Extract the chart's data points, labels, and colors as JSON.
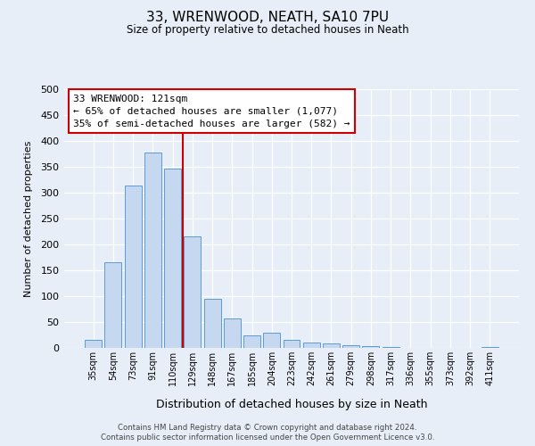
{
  "title": "33, WRENWOOD, NEATH, SA10 7PU",
  "subtitle": "Size of property relative to detached houses in Neath",
  "xlabel": "Distribution of detached houses by size in Neath",
  "ylabel": "Number of detached properties",
  "categories": [
    "35sqm",
    "54sqm",
    "73sqm",
    "91sqm",
    "110sqm",
    "129sqm",
    "148sqm",
    "167sqm",
    "185sqm",
    "204sqm",
    "223sqm",
    "242sqm",
    "261sqm",
    "279sqm",
    "298sqm",
    "317sqm",
    "336sqm",
    "355sqm",
    "373sqm",
    "392sqm",
    "411sqm"
  ],
  "values": [
    15,
    165,
    314,
    377,
    347,
    215,
    95,
    57,
    25,
    30,
    15,
    10,
    9,
    6,
    4,
    1,
    0,
    0,
    0,
    0,
    2
  ],
  "bar_color": "#c5d8f0",
  "bar_edge_color": "#5b9bd5",
  "background_color": "#e8eef7",
  "grid_color": "#ffffff",
  "vline_x_index": 5,
  "vline_color": "#cc0000",
  "annotation_title": "33 WRENWOOD: 121sqm",
  "annotation_line1": "← 65% of detached houses are smaller (1,077)",
  "annotation_line2": "35% of semi-detached houses are larger (582) →",
  "annotation_box_color": "#ffffff",
  "annotation_box_edge": "#cc0000",
  "ylim": [
    0,
    500
  ],
  "yticks": [
    0,
    50,
    100,
    150,
    200,
    250,
    300,
    350,
    400,
    450,
    500
  ],
  "footer1": "Contains HM Land Registry data © Crown copyright and database right 2024.",
  "footer2": "Contains public sector information licensed under the Open Government Licence v3.0."
}
